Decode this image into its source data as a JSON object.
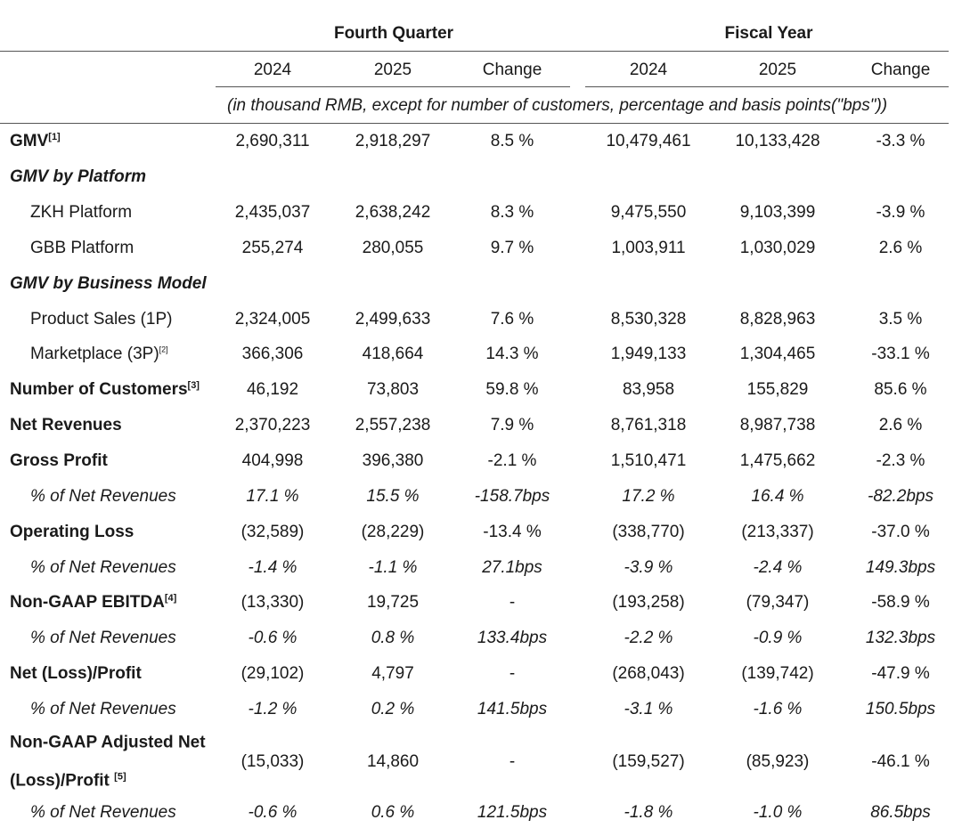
{
  "header": {
    "groups": [
      "Fourth Quarter",
      "Fiscal Year"
    ],
    "columns": [
      "2024",
      "2025",
      "Change",
      "2024",
      "2025",
      "Change"
    ],
    "note": "(in thousand RMB, except for number of customers, percentage and basis points(\"bps\"))"
  },
  "rows": [
    {
      "label": "GMV",
      "sup": "[1]",
      "style": "bold",
      "values": [
        "2,690,311",
        "2,918,297",
        "8.5 %",
        "10,479,461",
        "10,133,428",
        "-3.3 %"
      ]
    },
    {
      "label": "GMV by Platform",
      "style": "bold-italic",
      "values": []
    },
    {
      "label": "ZKH Platform",
      "style": "indent",
      "values": [
        "2,435,037",
        "2,638,242",
        "8.3 %",
        "9,475,550",
        "9,103,399",
        "-3.9 %"
      ]
    },
    {
      "label": "GBB Platform",
      "style": "indent",
      "values": [
        "255,274",
        "280,055",
        "9.7 %",
        "1,003,911",
        "1,030,029",
        "2.6 %"
      ]
    },
    {
      "label": "GMV by Business Model",
      "style": "bold-italic",
      "values": []
    },
    {
      "label": "Product Sales (1P)",
      "style": "indent",
      "values": [
        "2,324,005",
        "2,499,633",
        "7.6 %",
        "8,530,328",
        "8,828,963",
        "3.5 %"
      ]
    },
    {
      "label": "Marketplace (3P)",
      "sup": "[2]",
      "style": "indent",
      "values": [
        "366,306",
        "418,664",
        "14.3 %",
        "1,949,133",
        "1,304,465",
        "-33.1 %"
      ]
    },
    {
      "label": "Number of Customers",
      "sup": "[3]",
      "style": "bold",
      "values": [
        "46,192",
        "73,803",
        "59.8 %",
        "83,958",
        "155,829",
        "85.6 %"
      ]
    },
    {
      "label": "Net Revenues",
      "style": "bold",
      "values": [
        "2,370,223",
        "2,557,238",
        "7.9 %",
        "8,761,318",
        "8,987,738",
        "2.6 %"
      ]
    },
    {
      "label": "Gross Profit",
      "style": "bold",
      "values": [
        "404,998",
        "396,380",
        "-2.1 %",
        "1,510,471",
        "1,475,662",
        "-2.3 %"
      ]
    },
    {
      "label": "% of Net Revenues",
      "style": "italic",
      "values": [
        "17.1 %",
        "15.5 %",
        "-158.7bps",
        "17.2 %",
        "16.4 %",
        "-82.2bps"
      ]
    },
    {
      "label": "Operating Loss",
      "style": "bold",
      "values": [
        "(32,589)",
        "(28,229)",
        "-13.4 %",
        "(338,770)",
        "(213,337)",
        "-37.0 %"
      ]
    },
    {
      "label": "% of Net Revenues",
      "style": "italic",
      "values": [
        "-1.4 %",
        "-1.1 %",
        "27.1bps",
        "-3.9 %",
        "-2.4 %",
        "149.3bps"
      ]
    },
    {
      "label": "Non-GAAP EBITDA",
      "sup": "[4]",
      "style": "bold",
      "values": [
        "(13,330)",
        "19,725",
        "-",
        "(193,258)",
        "(79,347)",
        "-58.9 %"
      ]
    },
    {
      "label": "% of Net Revenues",
      "style": "italic",
      "values": [
        "-0.6 %",
        "0.8 %",
        "133.4bps",
        "-2.2 %",
        "-0.9 %",
        "132.3bps"
      ]
    },
    {
      "label": "Net (Loss)/Profit",
      "style": "bold",
      "values": [
        "(29,102)",
        "4,797",
        "-",
        "(268,043)",
        "(139,742)",
        "-47.9 %"
      ]
    },
    {
      "label": "% of Net Revenues",
      "style": "italic",
      "values": [
        "-1.2 %",
        "0.2 %",
        "141.5bps",
        "-3.1 %",
        "-1.6 %",
        "150.5bps"
      ]
    },
    {
      "label": "Non-GAAP Adjusted Net",
      "label2": "(Loss)/Profit ",
      "sup": "[5]",
      "style": "bold",
      "values": [
        "(15,033)",
        "14,860",
        "-",
        "(159,527)",
        "(85,923)",
        "-46.1 %"
      ]
    },
    {
      "label": "% of Net Revenues",
      "style": "italic",
      "values": [
        "-0.6 %",
        "0.6 %",
        "121.5bps",
        "-1.8 %",
        "-1.0 %",
        "86.5bps"
      ]
    }
  ]
}
